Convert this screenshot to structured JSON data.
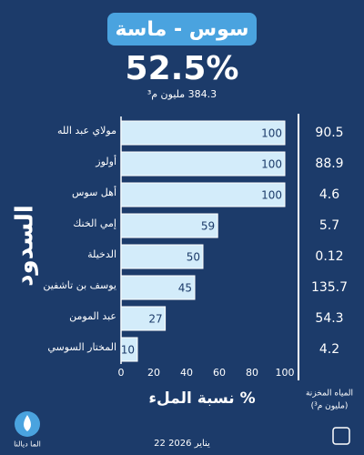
{
  "chart_data": {
    "type": "bar",
    "title": "سوس - ماسة",
    "total_fill": "52.5%",
    "total_stored": "384.3 مليون م³",
    "categories": [
      "مولاي عبد الله",
      "أولوز",
      "أهل سوس",
      "إمي الخنك",
      "الدخيلة",
      "يوسف بن تاشفين",
      "عبد المومن",
      "المختار السوسي"
    ],
    "values": [
      100,
      100,
      100,
      59,
      50,
      45,
      27,
      10
    ],
    "stored": [
      90.5,
      88.9,
      4.6,
      5.7,
      0.12,
      135.7,
      54.3,
      4.2
    ],
    "stored_header": [
      "المياه المخزنة",
      "(مليون م³)"
    ],
    "color": "#d3ecfa",
    "xlim": [
      0,
      100
    ],
    "xticks": [
      0,
      20,
      40,
      60,
      80,
      100
    ],
    "xlabel": "نسبة الملء %",
    "ylabel": "السدود",
    "date": "22 يناير 2026",
    "logo": "الما ديالنا"
  }
}
